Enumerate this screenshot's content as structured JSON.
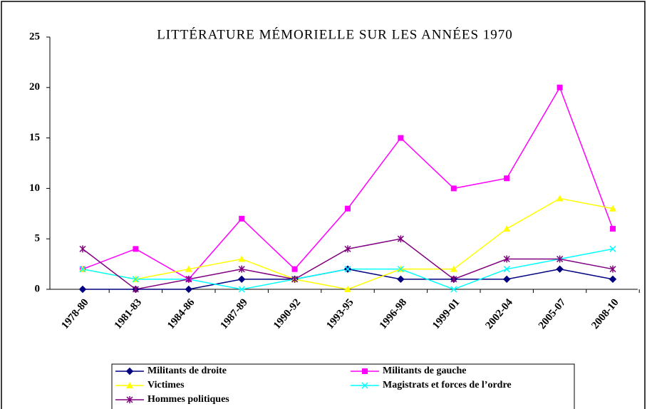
{
  "chart_data": {
    "type": "line",
    "title": "LITTÉRATURE MÉMORIELLE SUR LES ANNÉES 1970",
    "categories": [
      "1978-80",
      "1981-83",
      "1984-86",
      "1987-89",
      "1990-92",
      "1993-95",
      "1996-98",
      "1999-01",
      "2002-04",
      "2005-07",
      "2008-10"
    ],
    "series": [
      {
        "name": "Militants de droite",
        "color": "#000080",
        "marker": "diamond",
        "values": [
          0,
          0,
          0,
          1,
          1,
          2,
          1,
          1,
          1,
          2,
          1
        ]
      },
      {
        "name": "Militants de gauche",
        "color": "#ff00ff",
        "marker": "square",
        "values": [
          2,
          4,
          1,
          7,
          2,
          8,
          15,
          10,
          11,
          20,
          6
        ]
      },
      {
        "name": "Victimes",
        "color": "#ffff00",
        "marker": "triangle",
        "values": [
          2,
          1,
          2,
          3,
          1,
          0,
          2,
          2,
          6,
          9,
          8
        ]
      },
      {
        "name": "Magistrats et forces de l’ordre",
        "color": "#00ffff",
        "marker": "x",
        "values": [
          2,
          1,
          1,
          0,
          1,
          2,
          2,
          0,
          2,
          3,
          4
        ]
      },
      {
        "name": "Hommes politiques",
        "color": "#800080",
        "marker": "star",
        "values": [
          4,
          0,
          1,
          2,
          1,
          4,
          5,
          1,
          3,
          3,
          2
        ]
      }
    ],
    "ylim": [
      0,
      25
    ],
    "yticks": [
      0,
      5,
      10,
      15,
      20,
      25
    ],
    "grid": false,
    "legend": "bottom"
  }
}
